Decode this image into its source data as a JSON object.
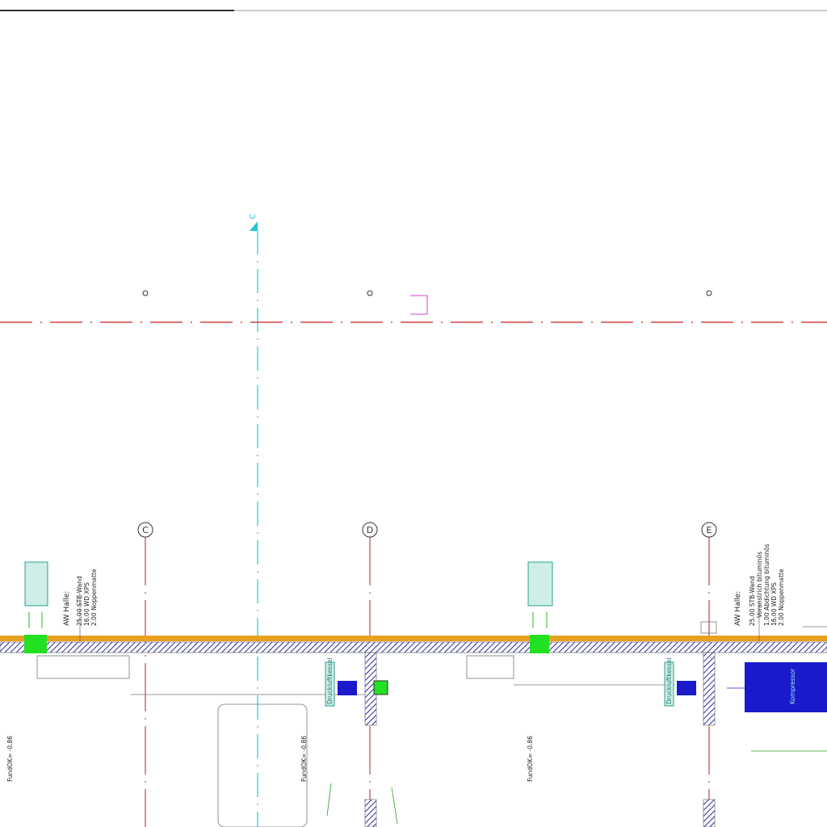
{
  "section_marker": "C",
  "grid_axes": [
    {
      "label": "C"
    },
    {
      "label": "D"
    },
    {
      "label": "E"
    }
  ],
  "wall_notes": [
    {
      "title": "AW Halle:",
      "lines": [
        "25.00 STB-Wand",
        "16.00 WD XPS",
        "2.00 Noppenmatte"
      ]
    },
    {
      "title": "AW Halle:",
      "lines": [
        "25.00 STB-Wand",
        "Voranstrich bituminös",
        "1.00 Abdichtung bituminös",
        "16.00 WD XPS",
        "2.00 Noppenmatte"
      ]
    }
  ],
  "levels": [
    "FundOK= -0.86",
    "FundOK= -0.86",
    "FundOK= -0.86"
  ],
  "equipment": [
    "Druckluftkessel",
    "Druckluftkessel",
    "Kompressor"
  ]
}
